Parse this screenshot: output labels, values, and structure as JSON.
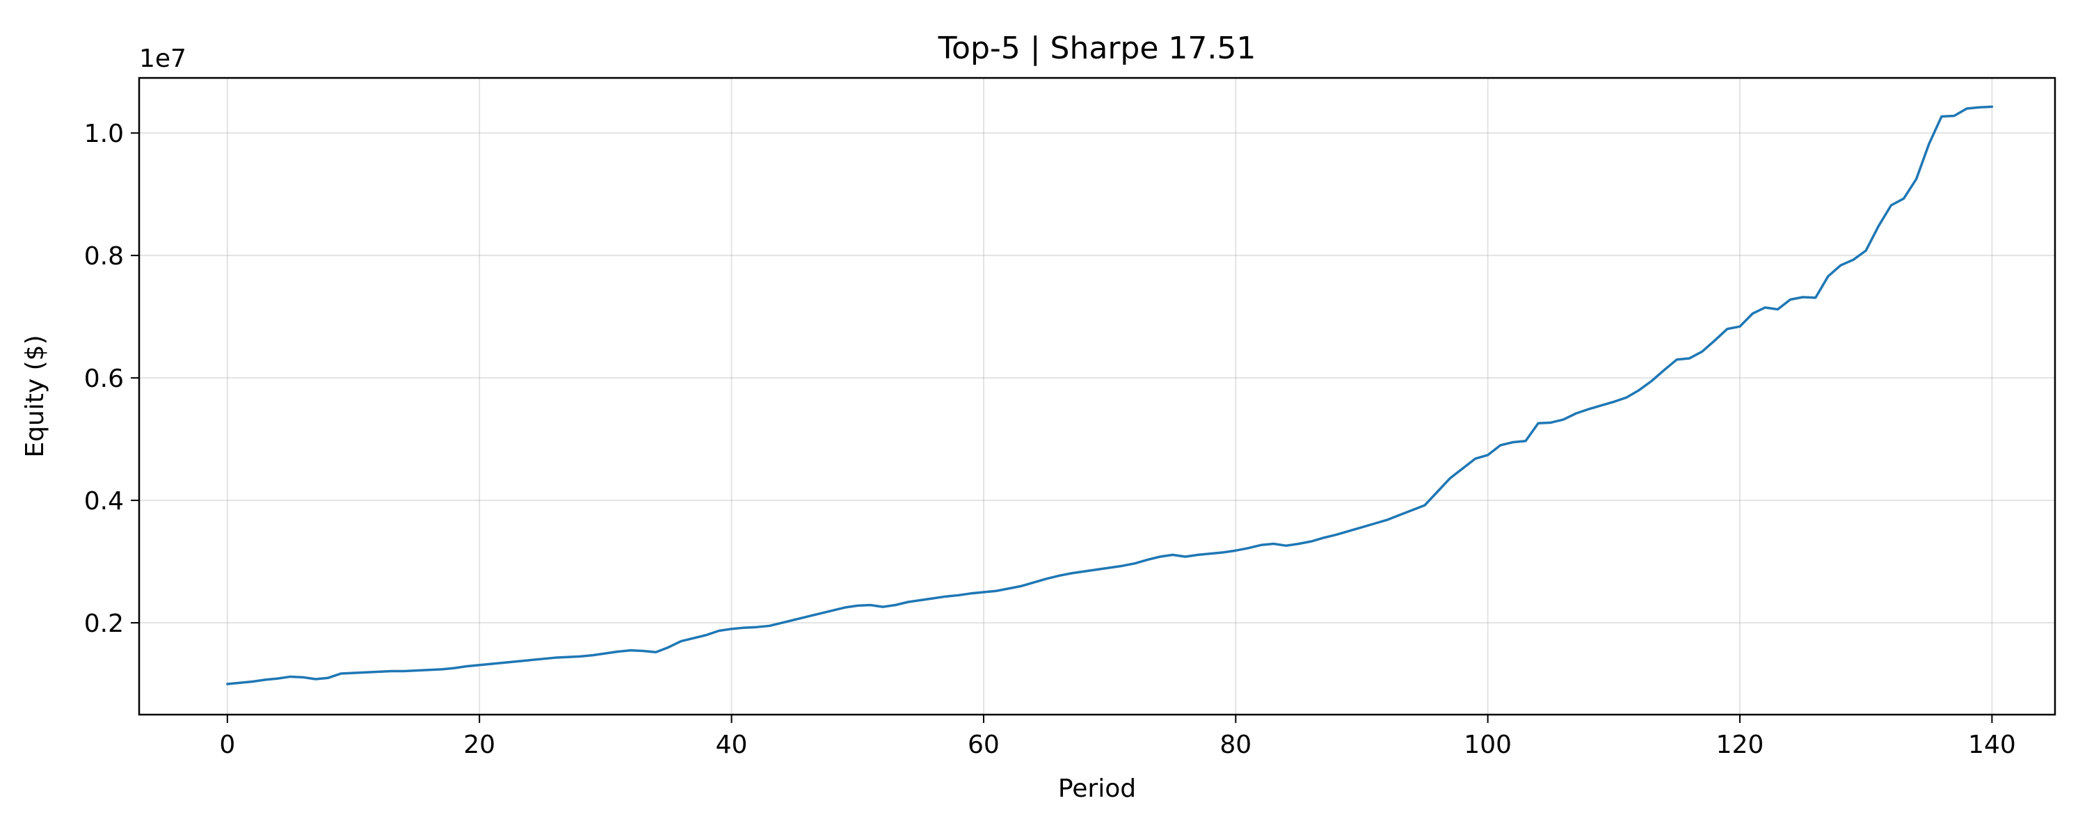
{
  "chart_data": {
    "type": "line",
    "title": "Top-5 | Sharpe 17.51",
    "xlabel": "Period",
    "ylabel": "Equity ($)",
    "y_offset_label": "1e7",
    "xlim": [
      -7,
      145
    ],
    "ylim": [
      0.05,
      1.09
    ],
    "x_ticks": [
      0,
      20,
      40,
      60,
      80,
      100,
      120,
      140
    ],
    "y_ticks": [
      0.2,
      0.4,
      0.6,
      0.8,
      1.0
    ],
    "x_tick_labels": [
      "0",
      "20",
      "40",
      "60",
      "80",
      "100",
      "120",
      "140"
    ],
    "y_tick_labels": [
      "0.2",
      "0.4",
      "0.6",
      "0.8",
      "1.0"
    ],
    "grid": true,
    "colors": {
      "line": "#1f77b4"
    },
    "series": [
      {
        "values": [
          0.1,
          0.102,
          0.104,
          0.107,
          0.109,
          0.112,
          0.111,
          0.108,
          0.11,
          0.117,
          0.118,
          0.119,
          0.12,
          0.121,
          0.121,
          0.122,
          0.123,
          0.124,
          0.126,
          0.129,
          0.131,
          0.133,
          0.135,
          0.137,
          0.139,
          0.141,
          0.143,
          0.144,
          0.145,
          0.147,
          0.15,
          0.153,
          0.155,
          0.154,
          0.152,
          0.16,
          0.17,
          0.175,
          0.18,
          0.187,
          0.19,
          0.192,
          0.193,
          0.195,
          0.2,
          0.205,
          0.21,
          0.215,
          0.22,
          0.225,
          0.228,
          0.229,
          0.226,
          0.229,
          0.234,
          0.237,
          0.24,
          0.243,
          0.245,
          0.248,
          0.25,
          0.252,
          0.256,
          0.26,
          0.266,
          0.272,
          0.277,
          0.281,
          0.284,
          0.287,
          0.29,
          0.293,
          0.297,
          0.303,
          0.308,
          0.311,
          0.308,
          0.311,
          0.313,
          0.315,
          0.318,
          0.322,
          0.327,
          0.329,
          0.326,
          0.329,
          0.333,
          0.339,
          0.344,
          0.35,
          0.356,
          0.362,
          0.368,
          0.376,
          0.384,
          0.392,
          0.414,
          0.436,
          0.452,
          0.468,
          0.474,
          0.49,
          0.495,
          0.497,
          0.526,
          0.527,
          0.532,
          0.542,
          0.549,
          0.555,
          0.561,
          0.568,
          0.58,
          0.595,
          0.613,
          0.63,
          0.632,
          0.643,
          0.661,
          0.68,
          0.684,
          0.705,
          0.715,
          0.712,
          0.728,
          0.732,
          0.731,
          0.766,
          0.784,
          0.793,
          0.808,
          0.848,
          0.882,
          0.893,
          0.925,
          0.982,
          1.027,
          1.028,
          1.04,
          1.042,
          1.043
        ]
      }
    ]
  }
}
